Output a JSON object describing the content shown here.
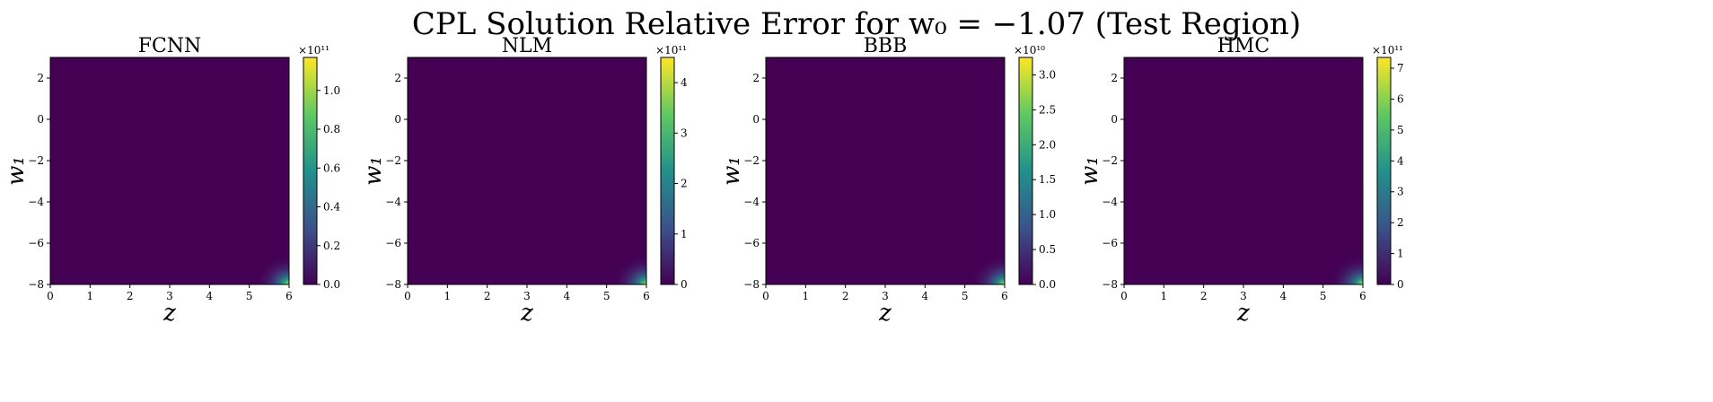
{
  "figure": {
    "title": "CPL Solution Relative Error for w₀ = −1.07 (Test Region)",
    "colormap": "viridis",
    "colormap_stops": [
      "#440154",
      "#3b528b",
      "#21918c",
      "#5ec962",
      "#fde725"
    ]
  },
  "chart_data": [
    {
      "type": "heatmap",
      "title": "FCNN",
      "xlabel": "z",
      "ylabel": "w₁",
      "xlim": [
        0,
        6
      ],
      "ylim": [
        -8,
        3
      ],
      "xticks": [
        0,
        1,
        2,
        3,
        4,
        5,
        6
      ],
      "xtick_labels": [
        "0",
        "1",
        "2",
        "3",
        "4",
        "5",
        "6"
      ],
      "yticks": [
        2,
        0,
        -2,
        -4,
        -6,
        -8
      ],
      "ytick_labels": [
        "2",
        "0",
        "−2",
        "−4",
        "−6",
        "−8"
      ],
      "colorbar": {
        "multiplier": "×10¹¹",
        "ticks": [
          0,
          0.2,
          0.4,
          0.6,
          0.8,
          1.0
        ],
        "tick_labels": [
          "0.0",
          "0.2",
          "0.4",
          "0.6",
          "0.8",
          "1.0"
        ],
        "range": [
          0,
          1.17
        ]
      },
      "hotspot": "bottom-right"
    },
    {
      "type": "heatmap",
      "title": "NLM",
      "xlabel": "z",
      "ylabel": "w₁",
      "xlim": [
        0,
        6
      ],
      "ylim": [
        -8,
        3
      ],
      "xticks": [
        0,
        1,
        2,
        3,
        4,
        5,
        6
      ],
      "xtick_labels": [
        "0",
        "1",
        "2",
        "3",
        "4",
        "5",
        "6"
      ],
      "yticks": [
        2,
        0,
        -2,
        -4,
        -6,
        -8
      ],
      "ytick_labels": [
        "2",
        "0",
        "−2",
        "−4",
        "−6",
        "−8"
      ],
      "colorbar": {
        "multiplier": "×10¹¹",
        "ticks": [
          0,
          1,
          2,
          3,
          4
        ],
        "tick_labels": [
          "0",
          "1",
          "2",
          "3",
          "4"
        ],
        "range": [
          0,
          4.5
        ]
      },
      "hotspot": "bottom-right"
    },
    {
      "type": "heatmap",
      "title": "BBB",
      "xlabel": "z",
      "ylabel": "w₁",
      "xlim": [
        0,
        6
      ],
      "ylim": [
        -8,
        3
      ],
      "xticks": [
        0,
        1,
        2,
        3,
        4,
        5,
        6
      ],
      "xtick_labels": [
        "0",
        "1",
        "2",
        "3",
        "4",
        "5",
        "6"
      ],
      "yticks": [
        2,
        0,
        -2,
        -4,
        -6,
        -8
      ],
      "ytick_labels": [
        "2",
        "0",
        "−2",
        "−4",
        "−6",
        "−8"
      ],
      "colorbar": {
        "multiplier": "×10¹⁰",
        "ticks": [
          0,
          0.5,
          1.0,
          1.5,
          2.0,
          2.5,
          3.0
        ],
        "tick_labels": [
          "0.0",
          "0.5",
          "1.0",
          "1.5",
          "2.0",
          "2.5",
          "3.0"
        ],
        "range": [
          0,
          3.25
        ]
      },
      "hotspot": "bottom-right"
    },
    {
      "type": "heatmap",
      "title": "HMC",
      "xlabel": "z",
      "ylabel": "w₁",
      "xlim": [
        0,
        6
      ],
      "ylim": [
        -8,
        3
      ],
      "xticks": [
        0,
        1,
        2,
        3,
        4,
        5,
        6
      ],
      "xtick_labels": [
        "0",
        "1",
        "2",
        "3",
        "4",
        "5",
        "6"
      ],
      "yticks": [
        2,
        0,
        -2,
        -4,
        -6,
        -8
      ],
      "ytick_labels": [
        "2",
        "0",
        "−2",
        "−4",
        "−6",
        "−8"
      ],
      "colorbar": {
        "multiplier": "×10¹¹",
        "ticks": [
          0,
          1,
          2,
          3,
          4,
          5,
          6,
          7
        ],
        "tick_labels": [
          "0",
          "1",
          "2",
          "3",
          "4",
          "5",
          "6",
          "7"
        ],
        "range": [
          0,
          7.35
        ]
      },
      "hotspot": "bottom-right"
    }
  ]
}
